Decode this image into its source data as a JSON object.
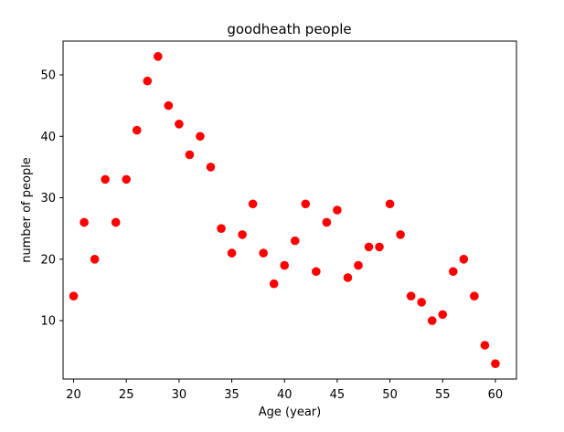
{
  "chart_data": {
    "type": "scatter",
    "title": "goodheath people",
    "xlabel": "Age (year)",
    "ylabel": "number of people",
    "xlim": [
      19.0,
      62.0
    ],
    "ylim": [
      0.5,
      55.5
    ],
    "xticks": [
      20,
      25,
      30,
      35,
      40,
      45,
      50,
      55,
      60
    ],
    "yticks": [
      10,
      20,
      30,
      40,
      50
    ],
    "grid": false,
    "marker_color": "#ff0000",
    "series": [
      {
        "x": [
          20,
          21,
          22,
          23,
          24,
          25,
          26,
          27,
          28,
          29,
          30,
          31,
          32,
          33,
          34,
          35,
          36,
          37,
          38,
          39,
          40,
          41,
          42,
          43,
          44,
          45,
          46,
          47,
          48,
          49,
          50,
          51,
          52,
          53,
          54,
          55,
          56,
          57,
          58,
          59,
          60
        ],
        "y": [
          14,
          26,
          20,
          33,
          26,
          33,
          41,
          49,
          53,
          45,
          42,
          37,
          40,
          35,
          25,
          21,
          24,
          29,
          21,
          16,
          19,
          23,
          29,
          18,
          26,
          28,
          17,
          19,
          22,
          22,
          29,
          24,
          14,
          13,
          10,
          11,
          18,
          20,
          14,
          6,
          3
        ]
      }
    ]
  }
}
